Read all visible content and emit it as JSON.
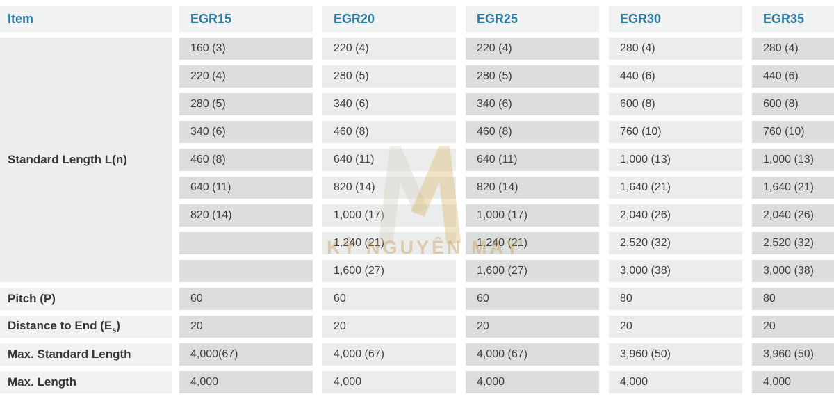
{
  "colors": {
    "accent_blue": "#2b7ca3",
    "header_bg": "#f0f1f1",
    "item_label_bg": "#f1f1f1",
    "merged_label_bg": "#ededee",
    "cell_dark": "#dcdddd",
    "cell_light": "#ebecec",
    "watermark_gold": "#c9a25e"
  },
  "watermark": {
    "logo": "m-monogram",
    "text": "KỶ NGUYÊN MÁY"
  },
  "table": {
    "columns": [
      "Item",
      "EGR15",
      "EGR20",
      "EGR25",
      "EGR30",
      "EGR35"
    ],
    "standard_length": {
      "label": "Standard Length L(n)",
      "rows": [
        [
          "160 (3)",
          "220 (4)",
          "220 (4)",
          "280 (4)",
          "280 (4)"
        ],
        [
          "220 (4)",
          "280 (5)",
          "280 (5)",
          "440 (6)",
          "440 (6)"
        ],
        [
          "280 (5)",
          "340 (6)",
          "340 (6)",
          "600 (8)",
          "600 (8)"
        ],
        [
          "340 (6)",
          "460 (8)",
          "460 (8)",
          "760 (10)",
          "760 (10)"
        ],
        [
          "460 (8)",
          "640 (11)",
          "640 (11)",
          "1,000 (13)",
          "1,000 (13)"
        ],
        [
          "640 (11)",
          "820 (14)",
          "820 (14)",
          "1,640 (21)",
          "1,640 (21)"
        ],
        [
          "820 (14)",
          "1,000 (17)",
          "1,000 (17)",
          "2,040 (26)",
          "2,040 (26)"
        ],
        [
          "",
          "1,240 (21)",
          "1,240 (21)",
          "2,520 (32)",
          "2,520 (32)"
        ],
        [
          "",
          "1,600 (27)",
          "1,600 (27)",
          "3,000 (38)",
          "3,000 (38)"
        ]
      ]
    },
    "spec_rows": [
      {
        "label": "Pitch (P)",
        "values": [
          "60",
          "60",
          "60",
          "80",
          "80"
        ]
      },
      {
        "label_parts": {
          "pre": "Distance to End (E",
          "sub": "s",
          "post": ")"
        },
        "values": [
          "20",
          "20",
          "20",
          "20",
          "20"
        ]
      },
      {
        "label": "Max. Standard Length",
        "values": [
          "4,000(67)",
          "4,000 (67)",
          "4,000 (67)",
          "3,960 (50)",
          "3,960 (50)"
        ]
      },
      {
        "label": "Max. Length",
        "values": [
          "4,000",
          "4,000",
          "4,000",
          "4,000",
          "4,000"
        ]
      }
    ]
  }
}
